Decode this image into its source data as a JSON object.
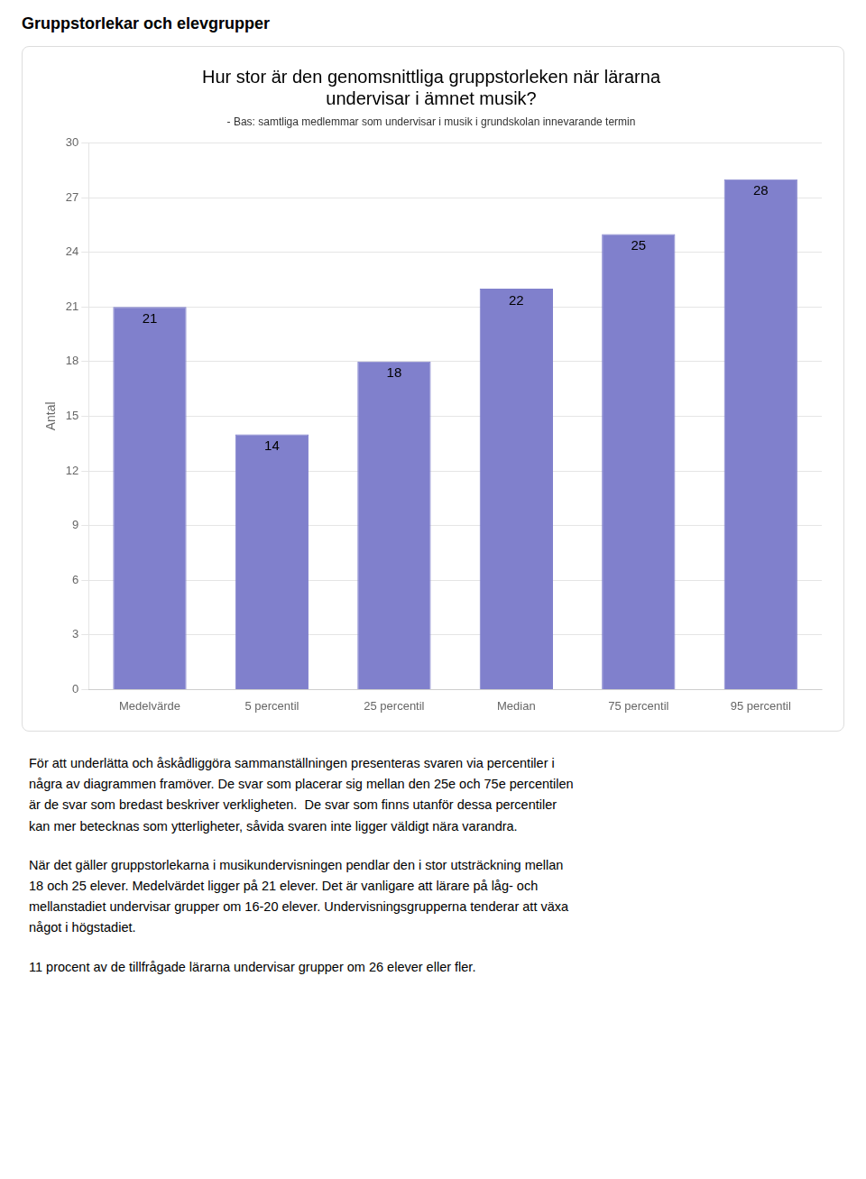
{
  "page_title": "Gruppstorlekar och elevgrupper",
  "paragraphs": [
    [
      "För att underlätta och åskådliggöra sammanställningen presenteras svaren via percentiler i",
      "några av diagrammen framöver. De svar som placerar sig mellan den 25e och 75e percentilen",
      "är de svar som bredast beskriver verkligheten.  De svar som finns utanför dessa percentiler",
      "kan mer betecknas som ytterligheter, såvida svaren inte ligger väldigt nära varandra."
    ],
    [
      "När det gäller gruppstorlekarna i musikundervisningen pendlar den i stor utsträckning mellan",
      "18 och 25 elever. Medelvärdet ligger på 21 elever. Det är vanligare att lärare på låg- och",
      "mellanstadiet undervisar grupper om 16-20 elever. Undervisningsgrupperna tenderar att växa",
      "något i högstadiet."
    ],
    [
      "11 procent av de tillfrågade lärarna undervisar grupper om 26 elever eller fler."
    ]
  ],
  "chart_data": {
    "type": "bar",
    "title": [
      "Hur stor är den genomsnittliga gruppstorleken när lärarna",
      "undervisar i ämnet musik?"
    ],
    "subtitle": "- Bas: samtliga medlemmar som undervisar i musik i grundskolan innevarande termin",
    "ylabel": "Antal",
    "categories": [
      "Medelvärde",
      "5 percentil",
      "25 percentil",
      "Median",
      "75 percentil",
      "95 percentil"
    ],
    "values": [
      21,
      14,
      18,
      22,
      25,
      28
    ],
    "color": "#8080cc",
    "ylim": [
      0,
      30
    ],
    "yticks": [
      0,
      3,
      6,
      9,
      12,
      15,
      18,
      21,
      24,
      27,
      30
    ],
    "grid": true,
    "data_labels": true
  }
}
